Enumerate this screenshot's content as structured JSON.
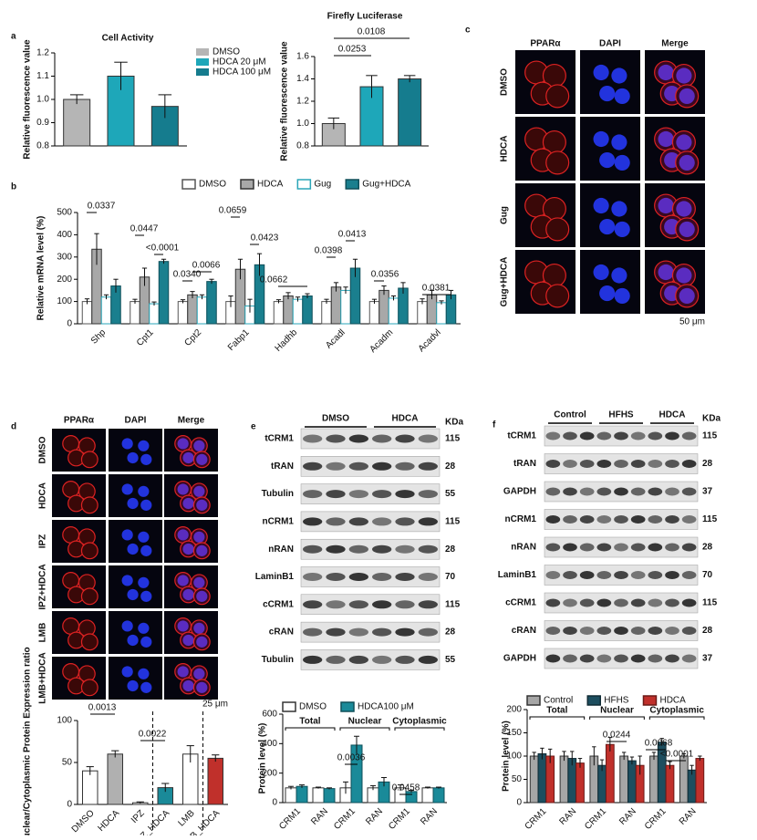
{
  "panel_labels": [
    "a",
    "b",
    "c",
    "d",
    "e",
    "f"
  ],
  "panel_c": {
    "columns": [
      "PPARα",
      "DAPI",
      "Merge"
    ],
    "rows": [
      "DMSO",
      "HDCA",
      "Gug",
      "Gug+HDCA"
    ],
    "scale": "50 μm"
  },
  "panel_d": {
    "columns": [
      "PPARα",
      "DAPI",
      "Merge"
    ],
    "rows": [
      "DMSO",
      "HDCA",
      "IPZ",
      "IPZ+HDCA",
      "LMB",
      "LMB+HDCA"
    ],
    "scale": "25 μm"
  },
  "panel_e": {
    "groups": [
      "DMSO",
      "HDCA"
    ],
    "unit": "KDa",
    "rows": [
      {
        "label": "tCRM1",
        "kda": 115
      },
      {
        "label": "tRAN",
        "kda": 28
      },
      {
        "label": "Tubulin",
        "kda": 55
      },
      {
        "label": "nCRM1",
        "kda": 115
      },
      {
        "label": "nRAN",
        "kda": 28
      },
      {
        "label": "LaminB1",
        "kda": 70
      },
      {
        "label": "cCRM1",
        "kda": 115
      },
      {
        "label": "cRAN",
        "kda": 28
      },
      {
        "label": "Tubulin",
        "kda": 55
      }
    ]
  },
  "panel_f": {
    "groups": [
      "Control",
      "HFHS",
      "HDCA"
    ],
    "unit": "KDa",
    "rows": [
      {
        "label": "tCRM1",
        "kda": 115
      },
      {
        "label": "tRAN",
        "kda": 28
      },
      {
        "label": "GAPDH",
        "kda": 37
      },
      {
        "label": "nCRM1",
        "kda": 115
      },
      {
        "label": "nRAN",
        "kda": 28
      },
      {
        "label": "LaminB1",
        "kda": 70
      },
      {
        "label": "cCRM1",
        "kda": 115
      },
      {
        "label": "cRAN",
        "kda": 28
      },
      {
        "label": "GAPDH",
        "kda": 37
      }
    ]
  },
  "chart_data": [
    {
      "type": "bar",
      "title": "Cell Activity",
      "y_label": "Relative fluorescence value",
      "categories": [
        "DMSO",
        "HDCA 20 μM",
        "HDCA 100 μM"
      ],
      "values": [
        1.0,
        1.1,
        0.97
      ],
      "errors": [
        0.02,
        0.06,
        0.05
      ],
      "colors": [
        "#b5b5b5",
        "#1ea7b9",
        "#157c8e"
      ],
      "ylim": [
        0.8,
        1.2
      ],
      "yticks": [
        0.8,
        0.9,
        {
          "value": 1.0,
          "label": "1.0"
        },
        1.1,
        1.2
      ]
    },
    {
      "type": "bar",
      "title": "Firefly Luciferase",
      "y_label": "Relative fluorescence value",
      "values": [
        1.0,
        1.33,
        1.4
      ],
      "errors": [
        0.05,
        0.1,
        0.03
      ],
      "colors": [
        "#b5b5b5",
        "#1ea7b9",
        "#157c8e"
      ],
      "ylim": [
        0.8,
        1.6
      ],
      "yticks": [
        0.8,
        {
          "value": 1.0,
          "label": "1.0"
        },
        1.2,
        1.4,
        1.6
      ],
      "annotations": [
        "0.0253",
        "0.0108"
      ]
    },
    {
      "type": "bar",
      "y_label": "Relative mRNA level (%)",
      "categories": [
        "Shp",
        "Cpt1",
        "Cpt2",
        "Fabp1",
        "Hadhb",
        "Acadl",
        "Acadm",
        "Acadvl"
      ],
      "series": [
        {
          "name": "DMSO",
          "color": "#ffffff",
          "edgecolor": "#555555",
          "values": [
            100,
            100,
            100,
            100,
            100,
            100,
            100,
            100
          ],
          "errors": [
            12,
            10,
            8,
            25,
            8,
            10,
            10,
            12
          ]
        },
        {
          "name": "HDCA",
          "color": "#a8a8a8",
          "edgecolor": "#333333",
          "values": [
            335,
            210,
            130,
            245,
            125,
            165,
            150,
            130
          ],
          "errors": [
            70,
            40,
            15,
            45,
            15,
            20,
            20,
            20
          ]
        },
        {
          "name": "Gug",
          "color": "#ffffff",
          "edgecolor": "#2aa6b8",
          "values": [
            120,
            90,
            120,
            80,
            110,
            150,
            115,
            95
          ],
          "errors": [
            10,
            8,
            10,
            30,
            10,
            15,
            10,
            8
          ]
        },
        {
          "name": "Gug+HDCA",
          "color": "#1a7f8e",
          "edgecolor": "#0f4f59",
          "values": [
            170,
            280,
            190,
            265,
            125,
            250,
            160,
            130
          ],
          "errors": [
            30,
            10,
            10,
            50,
            10,
            40,
            25,
            20
          ]
        }
      ],
      "ylim": [
        0,
        500
      ],
      "yticks": [
        0,
        100,
        200,
        300,
        400,
        500
      ],
      "annotations": [
        "0.0337",
        "0.0447",
        "<0.0001",
        "0.0340",
        "0.0066",
        "0.0659",
        "0.0423",
        "0.0662",
        "0.0398",
        "0.0413",
        "0.0356",
        "0.0381"
      ]
    },
    {
      "type": "bar",
      "y_label": "PPARα Nuclear/Cytoplasmic Protein Expression ratio",
      "categories": [
        "DMSO",
        "HDCA",
        "IPZ",
        "IPZ_HDCA",
        "LMB",
        "LMB_HDCA"
      ],
      "values": [
        40,
        60,
        2,
        20,
        60,
        55
      ],
      "errors": [
        5,
        4,
        1,
        5,
        10,
        4
      ],
      "colors": [
        "#ffffff",
        "#b0b0b0",
        "#ffffff",
        "#1a8a99",
        "#ffffff",
        "#c0302b"
      ],
      "ylim": [
        0,
        100
      ],
      "yticks": [
        0,
        50,
        100
      ],
      "annotations": [
        "0.0013",
        "0.0022"
      ]
    },
    {
      "type": "bar",
      "y_label": "Protein level (%)",
      "categories": [
        "CRM1",
        "RAN",
        "CRM1",
        "RAN",
        "CRM1",
        "RAN"
      ],
      "groups": [
        "Total",
        "Nuclear",
        "Cytoplasmic"
      ],
      "series": [
        {
          "name": "DMSO",
          "color": "#ffffff",
          "edgecolor": "#333333",
          "values": [
            100,
            100,
            100,
            100,
            100,
            100
          ],
          "errors": [
            10,
            5,
            40,
            15,
            20,
            5
          ]
        },
        {
          "name": "HDCA100 μM",
          "color": "#1a8a99",
          "edgecolor": "#0f4f59",
          "values": [
            110,
            95,
            390,
            140,
            75,
            100
          ],
          "errors": [
            10,
            5,
            60,
            30,
            8,
            5
          ]
        }
      ],
      "ylim": [
        0,
        600
      ],
      "yticks": [
        0,
        200,
        400,
        600
      ],
      "annotations": [
        "0.0036",
        "0.0458"
      ]
    },
    {
      "type": "bar",
      "y_label": "Protein level (%)",
      "categories": [
        "CRM1",
        "RAN",
        "CRM1",
        "RAN",
        "CRM1",
        "RAN"
      ],
      "groups": [
        "Total",
        "Nuclear",
        "Cytoplasmic"
      ],
      "series": [
        {
          "name": "Control",
          "color": "#a6a6a6",
          "edgecolor": "#333333",
          "values": [
            100,
            100,
            100,
            100,
            100,
            100
          ],
          "errors": [
            8,
            10,
            20,
            8,
            8,
            5
          ]
        },
        {
          "name": "HFHS",
          "color": "#1d4e5f",
          "edgecolor": "#102b35",
          "values": [
            105,
            95,
            80,
            90,
            130,
            70
          ],
          "errors": [
            12,
            15,
            12,
            8,
            8,
            10
          ]
        },
        {
          "name": "HDCA",
          "color": "#c0302b",
          "edgecolor": "#6b1a17",
          "values": [
            100,
            85,
            125,
            80,
            80,
            95
          ],
          "errors": [
            15,
            10,
            15,
            20,
            8,
            5
          ]
        }
      ],
      "ylim": [
        0,
        200
      ],
      "yticks": [
        0,
        50,
        100,
        150,
        200
      ],
      "annotations": [
        "0.0244",
        "0.0068",
        "<0.0001"
      ]
    }
  ]
}
